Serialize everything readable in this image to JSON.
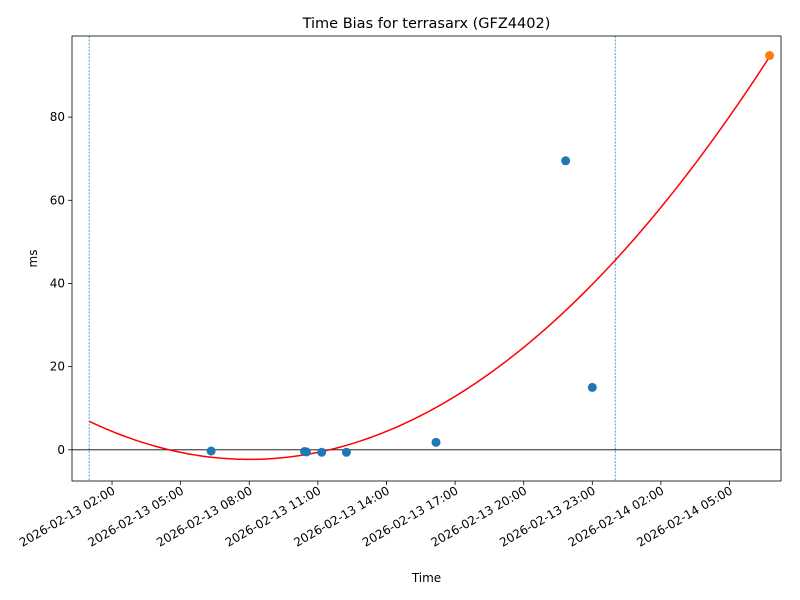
{
  "chart_data": {
    "type": "scatter",
    "title": "Time Bias for terrasarx (GFZ4402)",
    "xlabel": "Time",
    "ylabel": "ms",
    "xlim": [
      "2026-02-13 00:15",
      "2026-02-14 07:15"
    ],
    "ylim": [
      -7.5,
      99.5
    ],
    "x_ticks": [
      "2026-02-13 02:00",
      "2026-02-13 05:00",
      "2026-02-13 08:00",
      "2026-02-13 11:00",
      "2026-02-13 14:00",
      "2026-02-13 17:00",
      "2026-02-13 20:00",
      "2026-02-13 23:00",
      "2026-02-14 02:00",
      "2026-02-14 05:00"
    ],
    "y_ticks": [
      0,
      20,
      40,
      60,
      80
    ],
    "grid": false,
    "series": [
      {
        "type": "scatter",
        "color": "#1f77b4",
        "points": [
          {
            "x": "2026-02-13 06:20",
            "y": -0.3
          },
          {
            "x": "2026-02-13 10:25",
            "y": -0.4
          },
          {
            "x": "2026-02-13 10:30",
            "y": -0.5
          },
          {
            "x": "2026-02-13 11:10",
            "y": -0.6
          },
          {
            "x": "2026-02-13 12:15",
            "y": -0.6
          },
          {
            "x": "2026-02-13 16:10",
            "y": 1.8
          },
          {
            "x": "2026-02-13 21:50",
            "y": 69.5
          },
          {
            "x": "2026-02-13 23:00",
            "y": 15.0
          }
        ]
      },
      {
        "type": "scatter",
        "color": "#ff7f0e",
        "points": [
          {
            "x": "2026-02-14 06:45",
            "y": 94.8
          }
        ]
      },
      {
        "type": "line",
        "color": "#ff0000",
        "fit": "quadratic",
        "vertex": {
          "x": "2026-02-13 08:00",
          "y": -2.3
        },
        "x_range": [
          "2026-02-13 01:00",
          "2026-02-14 06:45"
        ],
        "points": [
          {
            "x": "2026-02-13 01:00",
            "y": 9.2
          },
          {
            "x": "2026-02-13 14:00",
            "y": 5.0
          },
          {
            "x": "2026-02-13 21:00",
            "y": 31.0
          },
          {
            "x": "2026-02-14 02:00",
            "y": 61.0
          },
          {
            "x": "2026-02-14 06:45",
            "y": 94.5
          }
        ]
      }
    ],
    "hlines": [
      {
        "y": 0,
        "color": "#000000"
      }
    ],
    "vlines": [
      {
        "x": "2026-02-13 01:00",
        "color": "#1f77b4",
        "style": "dashed"
      },
      {
        "x": "2026-02-14 00:00",
        "color": "#1f77b4",
        "style": "dashed"
      }
    ]
  }
}
